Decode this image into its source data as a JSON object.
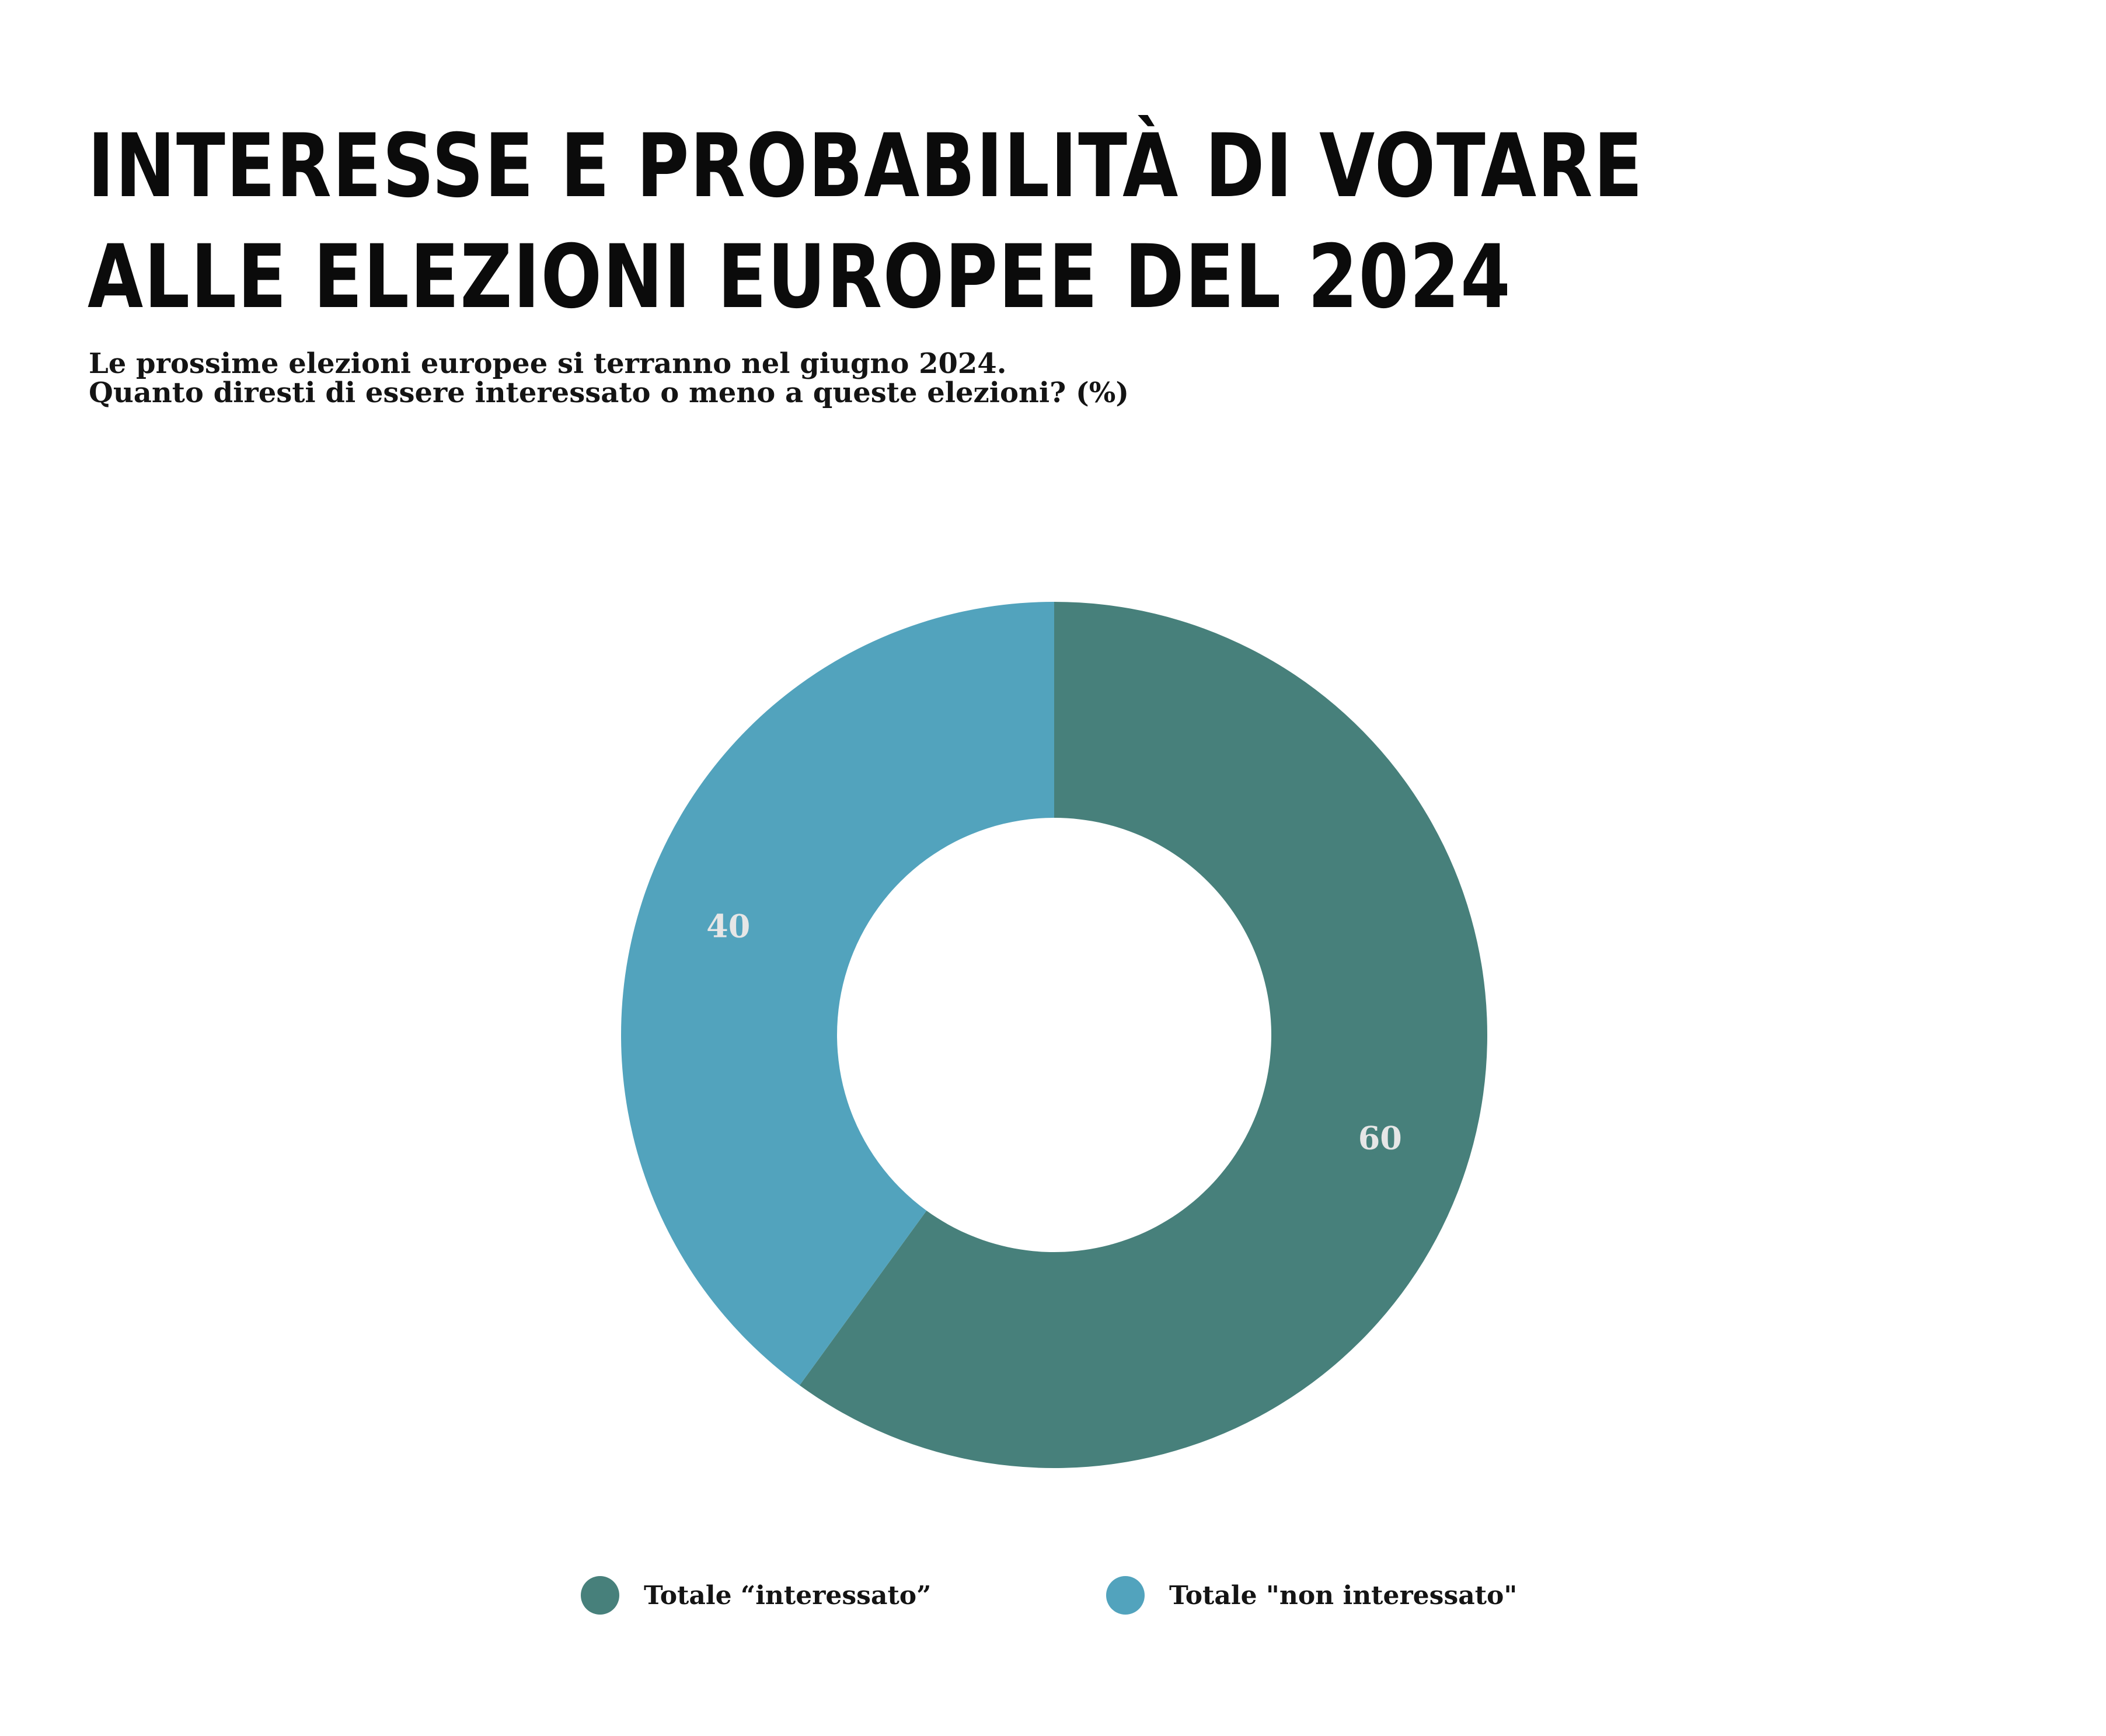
{
  "title_lines": [
    "INTERESSE E PROBABILITÀ DI VOTARE",
    "ALLE ELEZIONI EUROPEE DEL 2024"
  ],
  "subtitle_lines": [
    "Le prossime elezioni europee si terranno nel giugno 2024.",
    "Quanto diresti di essere interessato o meno a queste elezioni? (%)"
  ],
  "chart_data": {
    "type": "pie",
    "variant": "donut",
    "start": "12 o'clock, clockwise",
    "categories": [
      "Totale “interessato”",
      "Totale \"non interessato\""
    ],
    "values": [
      60,
      40
    ],
    "data_labels": [
      "60",
      "40"
    ],
    "colors": [
      "#47807b",
      "#52a3bd"
    ],
    "data_label_color": "#e6e6e6",
    "legend_position": "bottom"
  }
}
